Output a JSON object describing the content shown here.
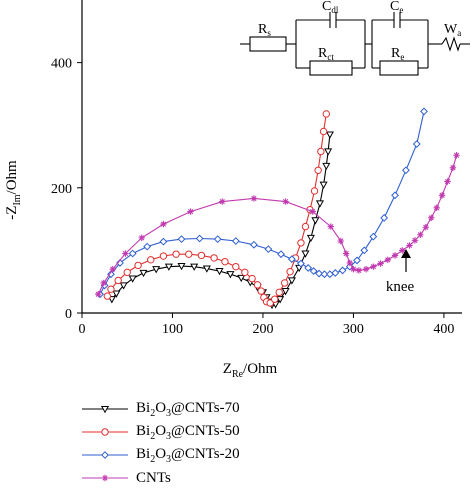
{
  "chart_data": {
    "type": "line",
    "title": "",
    "xlabel": {
      "main": "Z",
      "sub": "Re",
      "unit": "/Ohm"
    },
    "ylabel": {
      "prefix": "-Z",
      "sub": "Im",
      "unit": "/Ohm"
    },
    "xlim": [
      0,
      420
    ],
    "ylim": [
      0,
      500
    ],
    "xticks": [
      "0",
      "100",
      "200",
      "300",
      "400"
    ],
    "yticks": [
      "0",
      "200",
      "400"
    ],
    "grid": false,
    "legend_position": "bottom-left, below plot",
    "annotation": "knee",
    "circuit_labels": {
      "rs": {
        "main": "R",
        "sub": "s"
      },
      "cdl": {
        "main": "C",
        "sub": "dl"
      },
      "rct": {
        "main": "R",
        "sub": "ct"
      },
      "ce": {
        "main": "C",
        "sub": "e"
      },
      "re": {
        "main": "R",
        "sub": "e"
      },
      "wa": {
        "main": "W",
        "sub": "a"
      }
    },
    "series": [
      {
        "name": "Bi2O3@CNTs-70",
        "label": {
          "pre": "Bi",
          "s1": "2",
          "mid": "O",
          "s2": "3",
          "post": "@CNTs-70"
        },
        "color": "#000000",
        "marker": "triangle-down",
        "x": [
          33,
          38,
          46,
          56,
          68,
          82,
          96,
          110,
          124,
          138,
          152,
          164,
          176,
          186,
          194,
          200,
          204,
          207,
          210,
          214,
          219,
          225,
          232,
          240,
          247,
          253,
          258,
          263,
          267,
          270,
          272,
          274
        ],
        "y": [
          22,
          31,
          44,
          55,
          64,
          70,
          74,
          75,
          74,
          71,
          67,
          62,
          56,
          49,
          41,
          33,
          25,
          18,
          13,
          14,
          22,
          35,
          52,
          72,
          95,
          120,
          148,
          175,
          205,
          235,
          258,
          285
        ]
      },
      {
        "name": "Bi2O3@CNTs-50",
        "label": {
          "pre": "Bi",
          "s1": "2",
          "mid": "O",
          "s2": "3",
          "post": "@CNTs-50"
        },
        "color": "#e03030",
        "marker": "circle",
        "x": [
          28,
          32,
          40,
          50,
          62,
          76,
          90,
          104,
          118,
          132,
          146,
          158,
          170,
          180,
          188,
          194,
          198,
          201,
          204,
          208,
          213,
          218,
          224,
          230,
          236,
          242,
          247,
          252,
          257,
          261,
          264,
          267,
          270
        ],
        "y": [
          27,
          38,
          52,
          65,
          76,
          85,
          91,
          94,
          94,
          92,
          88,
          82,
          74,
          65,
          55,
          45,
          35,
          25,
          18,
          16,
          22,
          33,
          48,
          66,
          88,
          112,
          138,
          165,
          195,
          228,
          258,
          290,
          318
        ]
      },
      {
        "name": "Bi2O3@CNTs-20",
        "label": {
          "pre": "Bi",
          "s1": "2",
          "mid": "O",
          "s2": "3",
          "post": "@CNTs-20"
        },
        "color": "#2f5fd0",
        "marker": "diamond",
        "x": [
          20,
          25,
          32,
          42,
          56,
          72,
          90,
          110,
          130,
          150,
          170,
          190,
          206,
          220,
          232,
          242,
          250,
          256,
          262,
          268,
          274,
          280,
          288,
          296,
          304,
          312,
          322,
          334,
          346,
          358,
          370,
          378
        ],
        "y": [
          30,
          44,
          62,
          80,
          95,
          106,
          114,
          118,
          119,
          118,
          115,
          109,
          102,
          94,
          86,
          79,
          72,
          67,
          63,
          62,
          62,
          64,
          68,
          74,
          84,
          100,
          122,
          152,
          188,
          228,
          270,
          322
        ]
      },
      {
        "name": "CNTs",
        "label": {
          "pre": "CNTs",
          "s1": "",
          "mid": "",
          "s2": "",
          "post": ""
        },
        "color": "#c23ab0",
        "marker": "star",
        "x": [
          18,
          24,
          34,
          48,
          66,
          90,
          120,
          155,
          190,
          225,
          255,
          275,
          286,
          292,
          296,
          300,
          306,
          314,
          322,
          330,
          338,
          346,
          354,
          362,
          368,
          374,
          380,
          386,
          392,
          398,
          404,
          410,
          414
        ],
        "y": [
          30,
          48,
          70,
          95,
          120,
          142,
          162,
          178,
          183,
          178,
          162,
          138,
          115,
          95,
          80,
          70,
          68,
          70,
          74,
          79,
          85,
          92,
          100,
          108,
          116,
          125,
          137,
          152,
          168,
          188,
          210,
          232,
          252
        ]
      }
    ]
  }
}
